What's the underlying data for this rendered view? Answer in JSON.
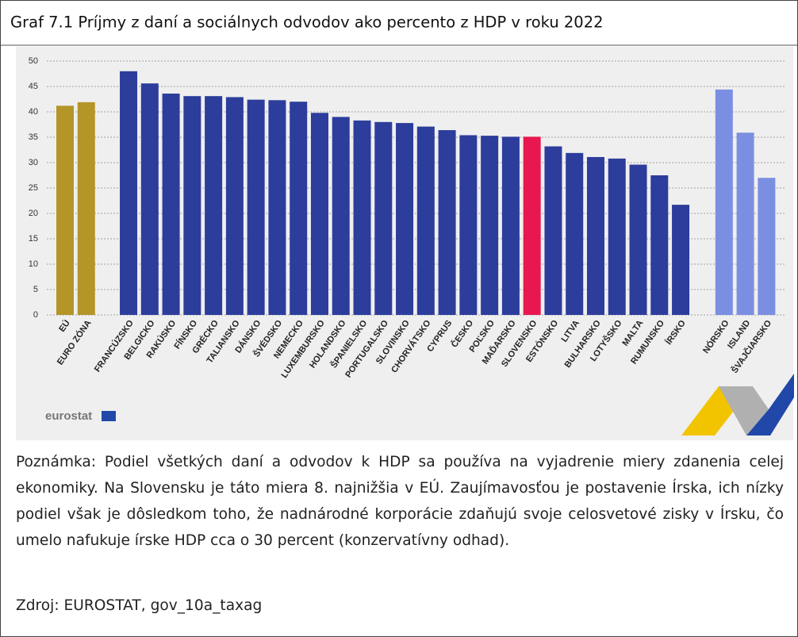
{
  "chart_data": {
    "type": "bar",
    "title": "Graf 7.1 Príjmy z daní a sociálnych odvodov ako percento z HDP v roku 2022",
    "categories": [
      "EÚ",
      "EURO ZÓNA",
      "FRANCÚZSKO",
      "BELGICKO",
      "RAKÚSKO",
      "FÍNSKO",
      "GRÉCKO",
      "TALIANSKO",
      "DÁNSKO",
      "ŠVÉDSKO",
      "NEMECKO",
      "LUXEMBURSKO",
      "HOLANDSKO",
      "ŠPANIELSKO",
      "PORTUGALSKO",
      "SLOVINSKO",
      "CHORVÁTSKO",
      "CYPRUS",
      "ČESKO",
      "POĽSKO",
      "MAĎARSKO",
      "SLOVENSKO",
      "ESTÓNSKO",
      "LITVA",
      "BULHARSKO",
      "LOTYŠSKO",
      "MALTA",
      "RUMUNSKO",
      "ÍRSKO",
      "NÓRSKO",
      "ISLAND",
      "ŠVAJČIARSKO"
    ],
    "values": [
      41.2,
      41.9,
      48.0,
      45.6,
      43.6,
      43.1,
      43.1,
      42.9,
      42.4,
      42.3,
      42.0,
      39.8,
      39.0,
      38.3,
      38.0,
      37.8,
      37.1,
      36.4,
      35.4,
      35.3,
      35.1,
      35.1,
      33.2,
      31.9,
      31.1,
      30.8,
      29.6,
      27.5,
      21.7,
      44.4,
      35.9,
      27.0
    ],
    "colors": [
      "#b39528",
      "#b39528",
      "#2d3d9c",
      "#2d3d9c",
      "#2d3d9c",
      "#2d3d9c",
      "#2d3d9c",
      "#2d3d9c",
      "#2d3d9c",
      "#2d3d9c",
      "#2d3d9c",
      "#2d3d9c",
      "#2d3d9c",
      "#2d3d9c",
      "#2d3d9c",
      "#2d3d9c",
      "#2d3d9c",
      "#2d3d9c",
      "#2d3d9c",
      "#2d3d9c",
      "#2d3d9c",
      "#e8174f",
      "#2d3d9c",
      "#2d3d9c",
      "#2d3d9c",
      "#2d3d9c",
      "#2d3d9c",
      "#2d3d9c",
      "#2d3d9c",
      "#7b8fe2",
      "#7b8fe2",
      "#7b8fe2"
    ],
    "ylim": [
      0,
      50
    ],
    "yticks": [
      0,
      5,
      10,
      15,
      20,
      25,
      30,
      35,
      40,
      45,
      50
    ],
    "grid": true,
    "logo": "eurostat"
  },
  "note": "Poznámka: Podiel všetkých daní a odvodov k HDP sa používa na vyjadrenie miery zdanenia celej ekonomiky. Na Slovensku je táto miera 8. najnižšia v EÚ. Zaujímavosťou je postavenie Írska, ich nízky podiel však je dôsledkom toho, že nadnárodné korporácie zdaňujú svoje celosvetové zisky v Írsku, čo umelo nafukuje írske HDP cca o 30 percent (konzervatívny odhad).",
  "source": "Zdroj: EUROSTAT, gov_10a_taxag"
}
